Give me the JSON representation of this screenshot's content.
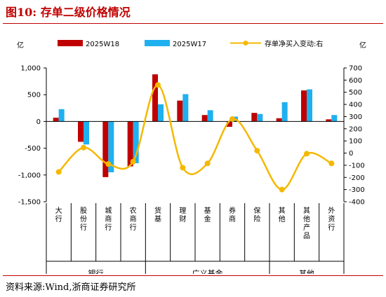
{
  "figure": {
    "title": "图10:  存单二级价格情况",
    "source": "资料来源:Wind,浙商证券研究所"
  },
  "chart_data": {
    "type": "bar",
    "left_unit": "亿",
    "right_unit": "亿",
    "legend_position": "top",
    "categories": [
      "大行",
      "股份行",
      "城商行",
      "农商行",
      "货基",
      "理财",
      "基金",
      "券商",
      "保险",
      "其他",
      "其他产品",
      "外资行"
    ],
    "groups": [
      {
        "label": "银行",
        "count": 4
      },
      {
        "label": "广义基金",
        "count": 5
      },
      {
        "label": "其他",
        "count": 3
      }
    ],
    "left_axis": {
      "ylim": [
        -1500,
        1000
      ],
      "ticks": [
        1000,
        500,
        0,
        -500,
        -1000,
        -1500
      ],
      "tick_labels": [
        "1,000",
        "500",
        "0",
        "-500",
        "-1,000",
        "-1,500"
      ]
    },
    "right_axis": {
      "ylim": [
        -400,
        700
      ],
      "ticks": [
        700,
        600,
        500,
        400,
        300,
        200,
        100,
        0,
        -100,
        -200,
        -300,
        -400
      ],
      "tick_labels": [
        "700",
        "600",
        "500",
        "400",
        "300",
        "200",
        "100",
        "0",
        "-100",
        "-200",
        "-300",
        "-400"
      ]
    },
    "series": [
      {
        "name": "2025W18",
        "kind": "bar",
        "axis": "left",
        "color": "#c00000",
        "values": [
          70,
          -380,
          -1040,
          -840,
          880,
          390,
          120,
          -100,
          160,
          60,
          580,
          40
        ]
      },
      {
        "name": "2025W17",
        "kind": "bar",
        "axis": "left",
        "color": "#1fb0f0",
        "values": [
          230,
          -430,
          -950,
          -780,
          320,
          510,
          210,
          90,
          140,
          360,
          600,
          120
        ]
      },
      {
        "name": "存单净买入变动:右",
        "kind": "line",
        "axis": "right",
        "color": "#f5b800",
        "values": [
          -155,
          45,
          -90,
          -70,
          560,
          -120,
          -85,
          280,
          20,
          -300,
          -5,
          -85
        ]
      }
    ]
  }
}
